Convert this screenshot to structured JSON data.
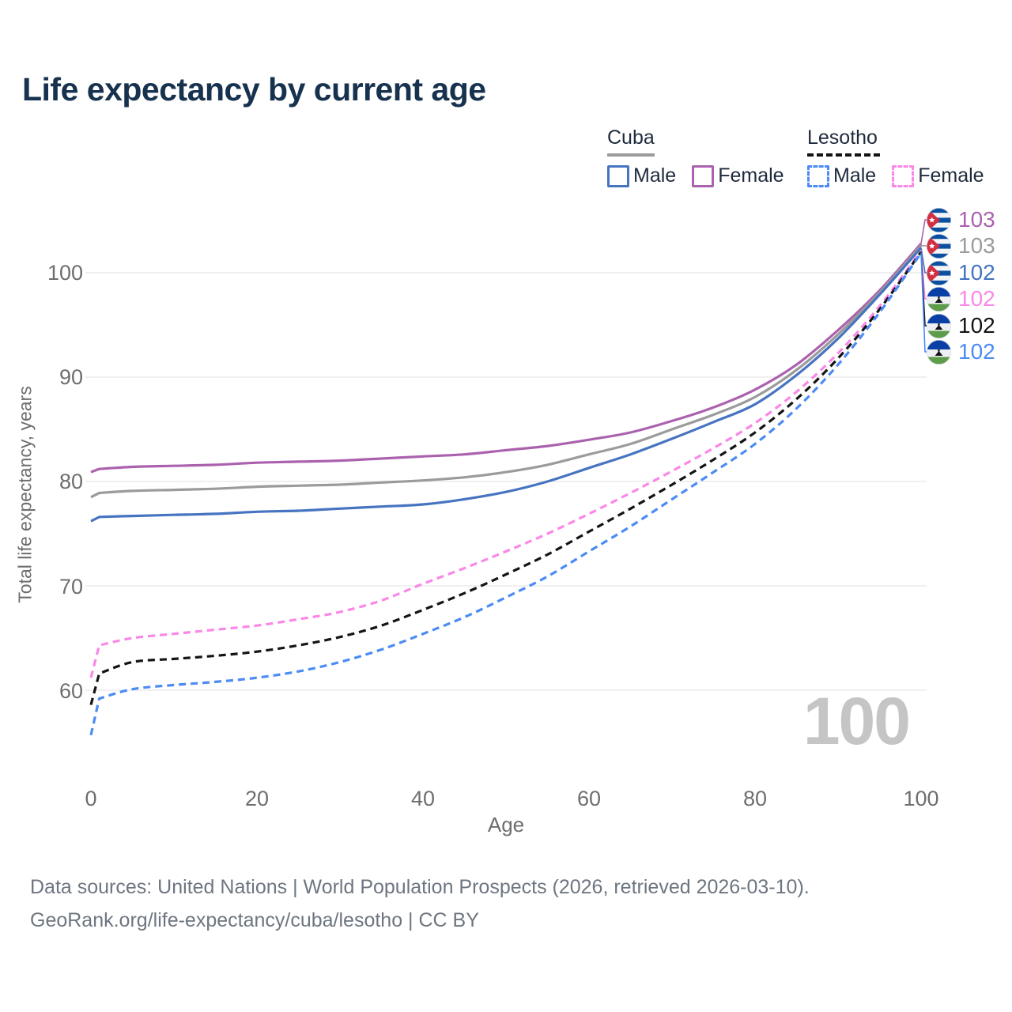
{
  "title": "Life expectancy by current age",
  "legend": {
    "groups": [
      {
        "label": "Cuba",
        "style": "solid"
      },
      {
        "label": "Lesotho",
        "style": "dashed"
      }
    ],
    "items": [
      {
        "label": "Male",
        "color": "#4674c1",
        "dashed": false
      },
      {
        "label": "Female",
        "color": "#ab62ae",
        "dashed": false
      },
      {
        "label": "Male",
        "color": "#4b8bf5",
        "dashed": true
      },
      {
        "label": "Female",
        "color": "#fb87e7",
        "dashed": true
      }
    ]
  },
  "axes": {
    "x_title": "Age",
    "y_title": "Total life expectancy, years",
    "x_tick_labels": [
      "0",
      "20",
      "40",
      "60",
      "80",
      "100"
    ],
    "y_tick_labels": [
      "100",
      "90",
      "80",
      "70",
      "60"
    ]
  },
  "chart_data": {
    "type": "line",
    "title": "Life expectancy by current age",
    "xlabel": "Age",
    "ylabel": "Total life expectancy, years",
    "xlim": [
      0,
      100
    ],
    "ylim": [
      55,
      105
    ],
    "xticks": [
      0,
      20,
      40,
      60,
      80,
      100
    ],
    "yticks": [
      100,
      90,
      80,
      70,
      60
    ],
    "grid": true,
    "legend_position": "top-right",
    "watermark": "100",
    "x": [
      0,
      1,
      5,
      10,
      15,
      20,
      25,
      30,
      35,
      40,
      45,
      50,
      55,
      60,
      65,
      70,
      75,
      80,
      85,
      90,
      95,
      100
    ],
    "series": [
      {
        "name": "Cuba Female",
        "country": "Cuba",
        "sex": "Female",
        "color": "#ab62ae",
        "dash": false,
        "end_label": "103",
        "flag": "cuba",
        "values": [
          80.9,
          81.2,
          81.4,
          81.5,
          81.6,
          81.8,
          81.9,
          82.0,
          82.2,
          82.4,
          82.6,
          83.0,
          83.4,
          84.0,
          84.7,
          85.8,
          87.1,
          88.8,
          91.2,
          94.5,
          98.3,
          102.8
        ]
      },
      {
        "name": "Cuba Both sexes",
        "country": "Cuba",
        "sex": "Both",
        "color": "#9b9b9b",
        "dash": false,
        "end_label": "103",
        "flag": "cuba",
        "values": [
          78.5,
          78.9,
          79.1,
          79.2,
          79.3,
          79.5,
          79.6,
          79.7,
          79.9,
          80.1,
          80.4,
          80.9,
          81.6,
          82.6,
          83.6,
          85.0,
          86.4,
          88.1,
          90.7,
          94.1,
          98.1,
          102.6
        ]
      },
      {
        "name": "Cuba Male",
        "country": "Cuba",
        "sex": "Male",
        "color": "#4674c1",
        "dash": false,
        "end_label": "102",
        "flag": "cuba",
        "values": [
          76.2,
          76.6,
          76.7,
          76.8,
          76.9,
          77.1,
          77.2,
          77.4,
          77.6,
          77.8,
          78.3,
          79.0,
          80.0,
          81.3,
          82.6,
          84.1,
          85.7,
          87.4,
          90.2,
          93.7,
          97.9,
          102.4
        ]
      },
      {
        "name": "Lesotho Female",
        "country": "Lesotho",
        "sex": "Female",
        "color": "#fb87e7",
        "dash": true,
        "end_label": "102",
        "flag": "lesotho",
        "values": [
          61.2,
          64.3,
          65.0,
          65.4,
          65.8,
          66.2,
          66.8,
          67.5,
          68.6,
          70.2,
          71.7,
          73.3,
          75.0,
          76.9,
          78.9,
          81.0,
          83.2,
          85.6,
          88.6,
          92.3,
          96.8,
          102.1
        ]
      },
      {
        "name": "Lesotho Both sexes",
        "country": "Lesotho",
        "sex": "Both",
        "color": "#141414",
        "dash": true,
        "end_label": "102",
        "flag": "lesotho",
        "values": [
          58.6,
          61.6,
          62.7,
          63.0,
          63.3,
          63.7,
          64.3,
          65.1,
          66.2,
          67.7,
          69.3,
          71.1,
          73.0,
          75.2,
          77.4,
          79.7,
          82.1,
          84.7,
          87.9,
          91.8,
          96.5,
          102.0
        ]
      },
      {
        "name": "Lesotho Male",
        "country": "Lesotho",
        "sex": "Male",
        "color": "#4b8bf5",
        "dash": true,
        "end_label": "102",
        "flag": "lesotho",
        "values": [
          55.7,
          59.2,
          60.1,
          60.5,
          60.8,
          61.2,
          61.8,
          62.7,
          63.9,
          65.4,
          67.0,
          68.9,
          70.9,
          73.3,
          75.7,
          78.3,
          80.9,
          83.6,
          87.0,
          91.2,
          96.2,
          101.9
        ]
      }
    ]
  },
  "footer": {
    "line1": "Data sources: United Nations | World Population Prospects (2026, retrieved 2026-03-10).",
    "line2": "GeoRank.org/life-expectancy/cuba/lesotho | CC BY"
  }
}
